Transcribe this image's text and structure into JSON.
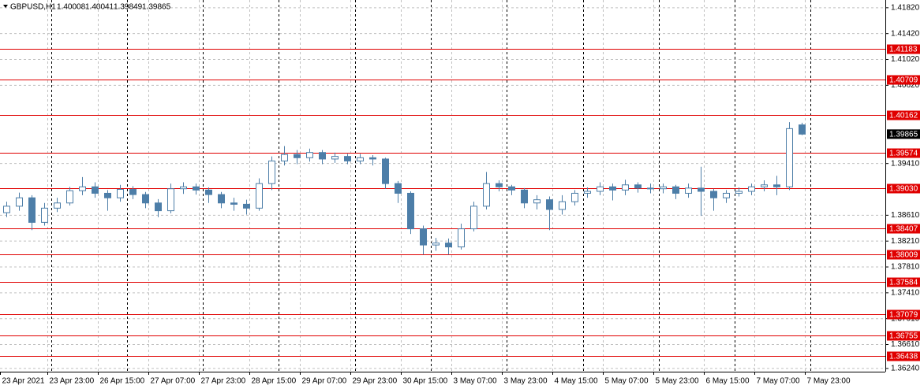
{
  "chart_data": {
    "type": "candlestick",
    "title": "GBPUSD,H1",
    "color": "#4d7ea8",
    "level_color": "#e00000",
    "grid": true,
    "ylim": [
      1.3619,
      1.4194
    ],
    "yticks": [
      {
        "value": 1.4182,
        "label": "1.41820"
      },
      {
        "value": 1.4142,
        "label": "1.41420"
      },
      {
        "value": 1.4102,
        "label": "1.41020"
      },
      {
        "value": 1.4062,
        "label": "1.40620"
      },
      {
        "value": 1.3941,
        "label": "1.39410"
      },
      {
        "value": 1.3861,
        "label": "1.38610"
      },
      {
        "value": 1.3821,
        "label": "1.38210"
      },
      {
        "value": 1.3781,
        "label": "1.37810"
      },
      {
        "value": 1.3741,
        "label": "1.37410"
      },
      {
        "value": 1.3701,
        "label": "1.37010"
      },
      {
        "value": 1.3661,
        "label": "1.36610"
      },
      {
        "value": 1.3624,
        "label": "1.36240"
      }
    ],
    "levels": [
      1.41183,
      1.40709,
      1.40162,
      1.39574,
      {
        "value": 1.3903,
        "label": "1.39030"
      },
      1.38407,
      1.38009,
      1.37584,
      1.37079,
      1.36755,
      1.36438
    ],
    "x_labels": [
      "23 Apr 2021",
      "23 Apr 23:00",
      "26 Apr 15:00",
      "27 Apr 07:00",
      "27 Apr 23:00",
      "28 Apr 15:00",
      "29 Apr 07:00",
      "29 Apr 23:00",
      "30 Apr 15:00",
      "3 May 07:00",
      "3 May 23:00",
      "4 May 15:00",
      "5 May 07:00",
      "5 May 23:00",
      "6 May 15:00",
      "7 May 07:00",
      "7 May 23:00"
    ],
    "open": [
      1.3865,
      1.3875,
      1.3888,
      1.385,
      1.3872,
      1.388,
      1.3899,
      1.3905,
      1.3895,
      1.3888,
      1.3901,
      1.3893,
      1.388,
      1.3868,
      1.3902,
      1.3905,
      1.39,
      1.3893,
      1.388,
      1.3878,
      1.3872,
      1.391,
      1.3945,
      1.3955,
      1.395,
      1.3958,
      1.3948,
      1.3952,
      1.3945,
      1.395,
      1.3948,
      1.391,
      1.3895,
      1.384,
      1.3815,
      1.3818,
      1.3812,
      1.384,
      1.3875,
      1.391,
      1.3905,
      1.39,
      1.388,
      1.3885,
      1.387,
      1.3882,
      1.3895,
      1.3898,
      1.3905,
      1.39,
      1.3908,
      1.3903,
      1.3902,
      1.3905,
      1.3895,
      1.3903,
      1.3898,
      1.3888,
      1.3895,
      1.3898,
      1.3905,
      1.3908,
      1.3905,
      1.40008
    ],
    "high": [
      1.3882,
      1.3896,
      1.3892,
      1.388,
      1.3888,
      1.3905,
      1.392,
      1.3912,
      1.39,
      1.3908,
      1.3906,
      1.3897,
      1.3886,
      1.391,
      1.3912,
      1.391,
      1.3904,
      1.3897,
      1.3888,
      1.3885,
      1.3918,
      1.3952,
      1.3968,
      1.3962,
      1.3964,
      1.3962,
      1.3958,
      1.3956,
      1.3956,
      1.3954,
      1.395,
      1.3914,
      1.3898,
      1.3845,
      1.3826,
      1.3825,
      1.3848,
      1.3882,
      1.3928,
      1.3915,
      1.3908,
      1.3903,
      1.3892,
      1.389,
      1.3892,
      1.39,
      1.3904,
      1.3912,
      1.391,
      1.3916,
      1.3912,
      1.391,
      1.391,
      1.3908,
      1.391,
      1.3936,
      1.3902,
      1.39,
      1.3904,
      1.391,
      1.3915,
      1.3922,
      1.4005,
      1.40041
    ],
    "low": [
      1.3858,
      1.3868,
      1.3838,
      1.3845,
      1.3866,
      1.3876,
      1.3892,
      1.3888,
      1.3868,
      1.3882,
      1.3886,
      1.3872,
      1.3858,
      1.3864,
      1.3894,
      1.3893,
      1.388,
      1.3872,
      1.3868,
      1.3862,
      1.3868,
      1.39,
      1.3938,
      1.394,
      1.3944,
      1.394,
      1.3942,
      1.394,
      1.394,
      1.3938,
      1.3902,
      1.388,
      1.3832,
      1.38,
      1.3806,
      1.38,
      1.3808,
      1.3836,
      1.387,
      1.3898,
      1.3892,
      1.3872,
      1.387,
      1.3838,
      1.3862,
      1.3876,
      1.3888,
      1.3892,
      1.3884,
      1.3892,
      1.3896,
      1.3895,
      1.3895,
      1.3886,
      1.3888,
      1.386,
      1.3868,
      1.388,
      1.389,
      1.3892,
      1.3898,
      1.3892,
      1.39,
      1.39849
    ],
    "close": [
      1.3875,
      1.3888,
      1.385,
      1.3872,
      1.388,
      1.3899,
      1.3905,
      1.3895,
      1.3888,
      1.3901,
      1.3893,
      1.388,
      1.3868,
      1.3902,
      1.3905,
      1.39,
      1.3893,
      1.388,
      1.3878,
      1.3872,
      1.391,
      1.3945,
      1.3955,
      1.395,
      1.3958,
      1.3948,
      1.3952,
      1.3945,
      1.395,
      1.3948,
      1.391,
      1.3895,
      1.384,
      1.3815,
      1.3818,
      1.3812,
      1.384,
      1.3875,
      1.391,
      1.3905,
      1.39,
      1.388,
      1.3885,
      1.387,
      1.3882,
      1.3895,
      1.3898,
      1.3905,
      1.39,
      1.3908,
      1.3903,
      1.3902,
      1.3905,
      1.3895,
      1.3903,
      1.3898,
      1.3888,
      1.3895,
      1.3898,
      1.3905,
      1.3908,
      1.3905,
      1.3995,
      1.39865
    ]
  }
}
